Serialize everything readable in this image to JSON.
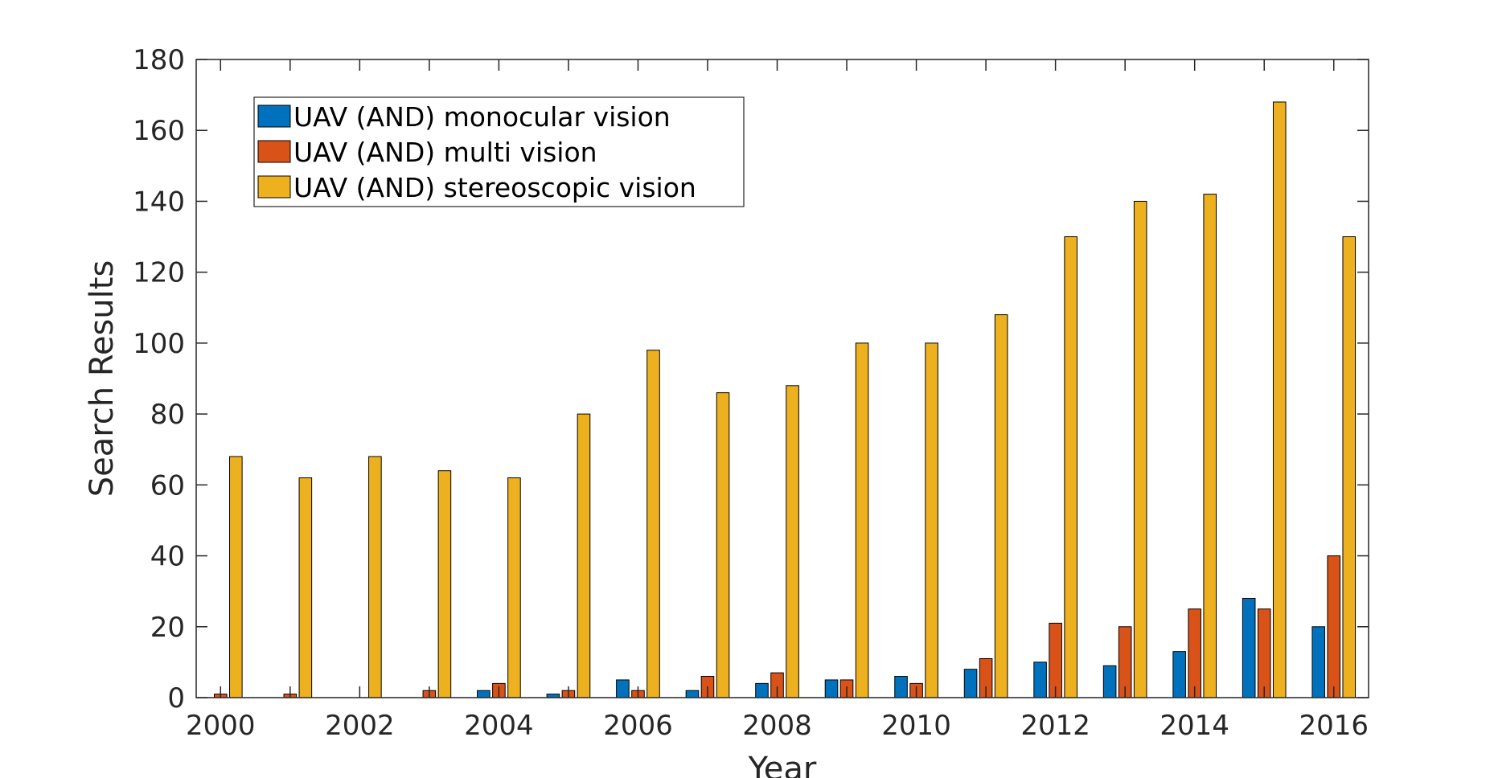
{
  "chart_data": {
    "type": "bar",
    "title": "",
    "xlabel": "Year",
    "ylabel": "Search Results",
    "ylim": [
      0,
      180
    ],
    "yticks": [
      0,
      20,
      40,
      60,
      80,
      100,
      120,
      140,
      160,
      180
    ],
    "xlim": [
      1999.65,
      2016.5
    ],
    "xticks": [
      2000,
      2002,
      2004,
      2006,
      2008,
      2010,
      2012,
      2014,
      2016
    ],
    "xtick_labels": [
      "2000",
      "2002",
      "2004",
      "2006",
      "2008",
      "2010",
      "2012",
      "2014",
      "2016"
    ],
    "categories": [
      "2000",
      "2001",
      "2002",
      "2003",
      "2004",
      "2005",
      "2006",
      "2007",
      "2008",
      "2009",
      "2010",
      "2011",
      "2012",
      "2013",
      "2014",
      "2015",
      "2016"
    ],
    "legend_position": "top-left",
    "series": [
      {
        "name": "UAV (AND) monocular vision",
        "color": "#0072BD",
        "values": [
          0,
          0,
          0,
          0,
          2,
          1,
          5,
          2,
          4,
          5,
          6,
          8,
          10,
          9,
          13,
          28,
          20
        ]
      },
      {
        "name": "UAV (AND) multi vision",
        "color": "#D95319",
        "values": [
          1,
          1,
          0,
          2,
          4,
          2,
          2,
          6,
          7,
          5,
          4,
          11,
          21,
          20,
          25,
          25,
          40
        ]
      },
      {
        "name": "UAV (AND) stereoscopic vision",
        "color": "#EDB120",
        "values": [
          68,
          62,
          68,
          64,
          62,
          80,
          98,
          86,
          88,
          100,
          100,
          108,
          130,
          140,
          142,
          168,
          130
        ]
      }
    ]
  }
}
